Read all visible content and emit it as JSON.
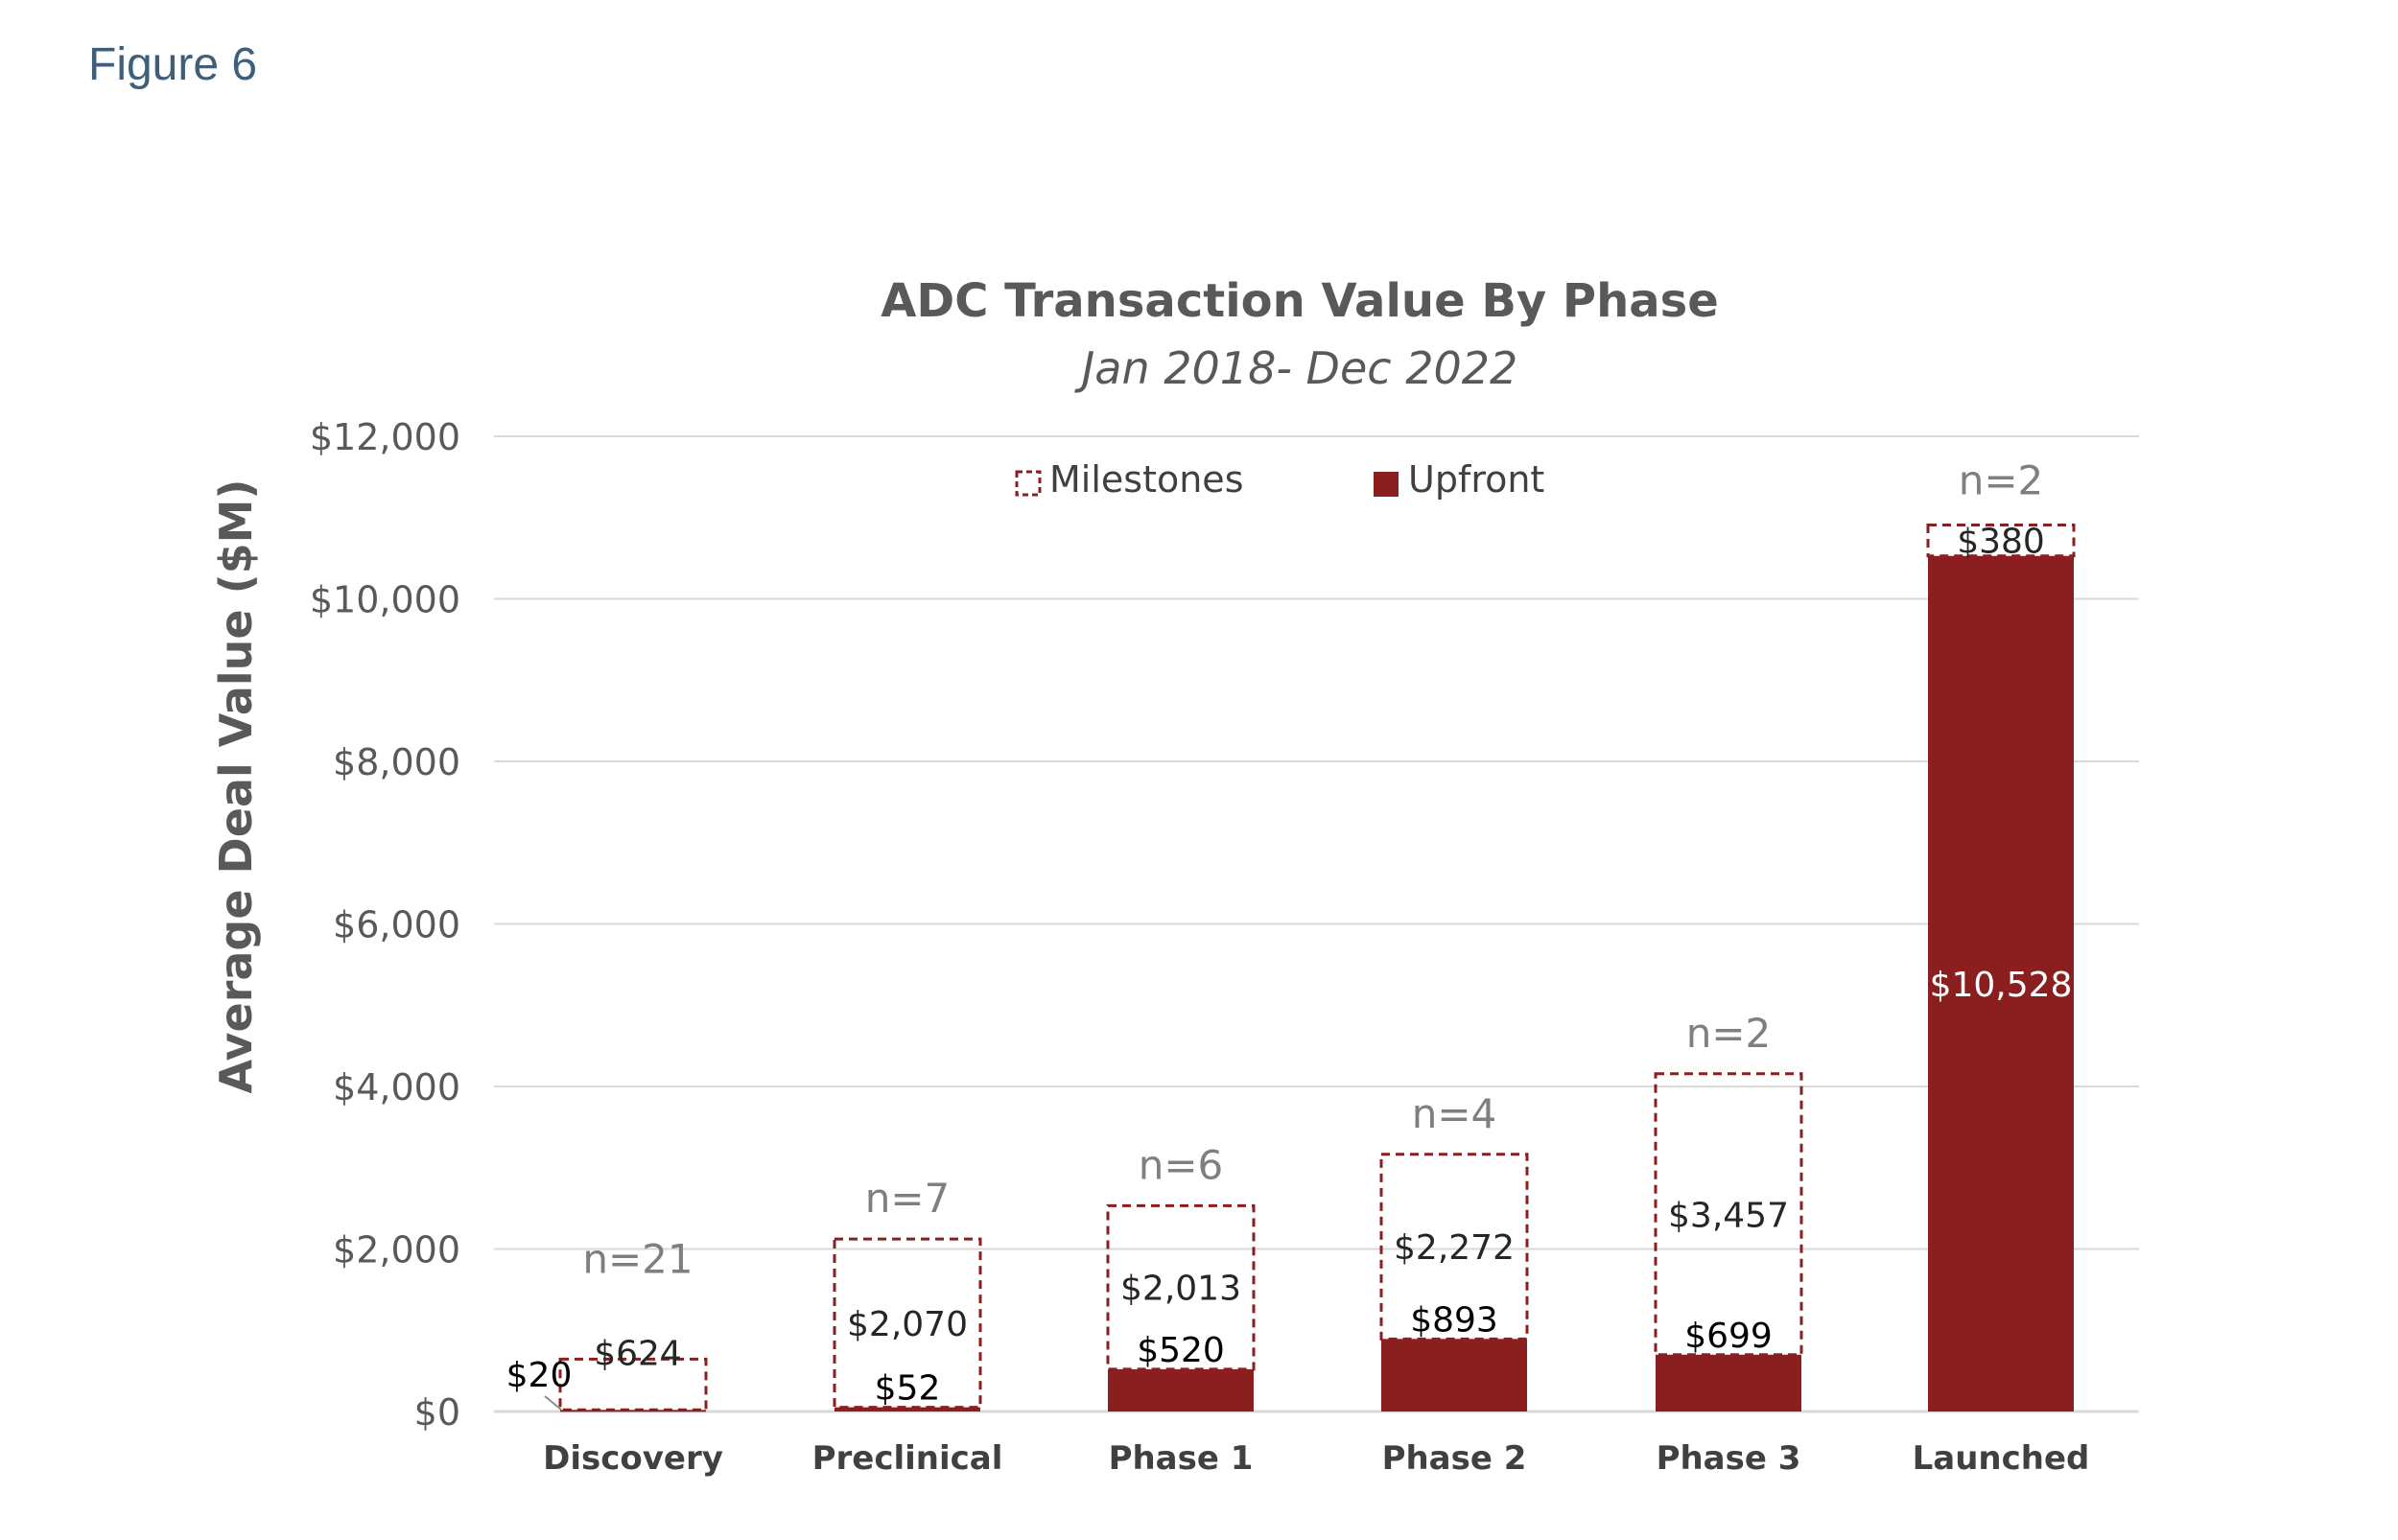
{
  "figure_label": "Figure 6",
  "colors": {
    "upfront": "#8b1f1f",
    "milestones_border": "#8b1f1f",
    "grid": "#d9d9d9",
    "axis_text": "#595959",
    "n_text": "#7f7f7f",
    "title_text": "#595959"
  },
  "chart_data": {
    "type": "bar",
    "stacked": true,
    "title": "ADC Transaction Value By Phase",
    "subtitle": "Jan 2018- Dec 2022",
    "ylabel": "Average Deal Value ($M)",
    "xlabel": "",
    "ylim": [
      0,
      12000
    ],
    "yticks": [
      0,
      2000,
      4000,
      6000,
      8000,
      10000,
      12000
    ],
    "ytick_labels": [
      "$0",
      "$2,000",
      "$4,000",
      "$6,000",
      "$8,000",
      "$10,000",
      "$12,000"
    ],
    "grid": true,
    "legend_position": "top",
    "categories": [
      "Discovery",
      "Preclinical",
      "Phase 1",
      "Phase 2",
      "Phase 3",
      "Launched"
    ],
    "series": [
      {
        "name": "Upfront",
        "style": "solid",
        "values": [
          20,
          52,
          520,
          893,
          699,
          10528
        ],
        "labels": [
          "$20",
          "$52",
          "$520",
          "$893",
          "$699",
          "$10,528"
        ]
      },
      {
        "name": "Milestones",
        "style": "dashed-outline",
        "values": [
          624,
          2070,
          2013,
          2272,
          3457,
          380
        ],
        "labels": [
          "$624",
          "$2,070",
          "$2,013",
          "$2,272",
          "$3,457",
          "$380"
        ]
      }
    ],
    "n_labels": [
      "n=21",
      "n=7",
      "n=6",
      "n=4",
      "n=2",
      "n=2"
    ]
  }
}
